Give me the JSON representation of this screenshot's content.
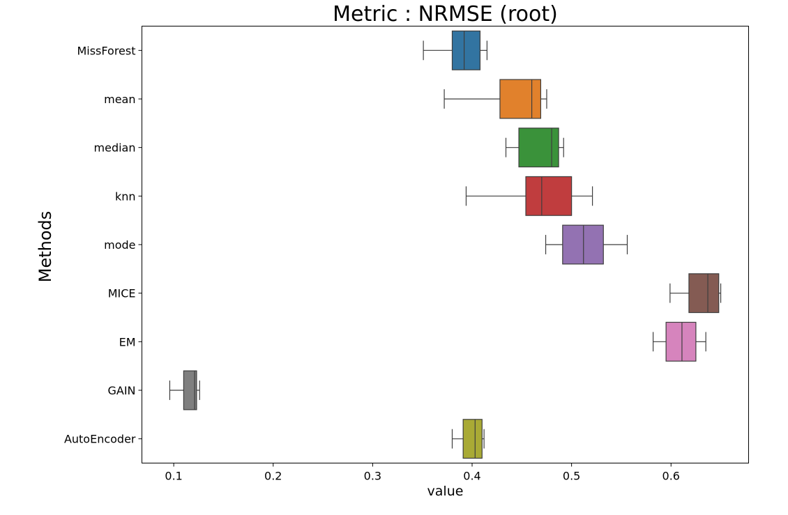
{
  "chart_data": {
    "type": "boxplot",
    "orientation": "horizontal",
    "title": "Metric : NRMSE (root)",
    "xlabel": "value",
    "ylabel": "Methods",
    "xlim": [
      0.068,
      0.678
    ],
    "xticks": [
      0.1,
      0.2,
      0.3,
      0.4,
      0.5,
      0.6
    ],
    "grid": false,
    "categories": [
      "MissForest",
      "mean",
      "median",
      "knn",
      "mode",
      "MICE",
      "EM",
      "GAIN",
      "AutoEncoder"
    ],
    "series": [
      {
        "category": "MissForest",
        "whisker_low": 0.351,
        "q1": 0.38,
        "median": 0.392,
        "q3": 0.408,
        "whisker_high": 0.415,
        "color": "#3274a1"
      },
      {
        "category": "mean",
        "whisker_low": 0.372,
        "q1": 0.428,
        "median": 0.46,
        "q3": 0.469,
        "whisker_high": 0.475,
        "color": "#e1812c"
      },
      {
        "category": "median",
        "whisker_low": 0.434,
        "q1": 0.447,
        "median": 0.48,
        "q3": 0.487,
        "whisker_high": 0.492,
        "color": "#3a923a"
      },
      {
        "category": "knn",
        "whisker_low": 0.394,
        "q1": 0.454,
        "median": 0.47,
        "q3": 0.5,
        "whisker_high": 0.521,
        "color": "#c03d3e"
      },
      {
        "category": "mode",
        "whisker_low": 0.474,
        "q1": 0.491,
        "median": 0.512,
        "q3": 0.532,
        "whisker_high": 0.556,
        "color": "#9372b2"
      },
      {
        "category": "MICE",
        "whisker_low": 0.599,
        "q1": 0.618,
        "median": 0.637,
        "q3": 0.648,
        "whisker_high": 0.65,
        "color": "#845b53"
      },
      {
        "category": "EM",
        "whisker_low": 0.582,
        "q1": 0.595,
        "median": 0.611,
        "q3": 0.625,
        "whisker_high": 0.635,
        "color": "#d684bd"
      },
      {
        "category": "GAIN",
        "whisker_low": 0.096,
        "q1": 0.11,
        "median": 0.121,
        "q3": 0.123,
        "whisker_high": 0.126,
        "color": "#7f7f7f"
      },
      {
        "category": "AutoEncoder",
        "whisker_low": 0.38,
        "q1": 0.391,
        "median": 0.403,
        "q3": 0.41,
        "whisker_high": 0.412,
        "color": "#a9aa35"
      }
    ]
  }
}
